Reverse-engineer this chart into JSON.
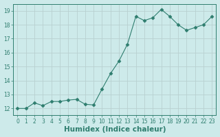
{
  "xlabel": "Humidex (Indice chaleur)",
  "x": [
    0,
    1,
    2,
    3,
    4,
    5,
    6,
    7,
    8,
    9,
    10,
    11,
    12,
    13,
    14,
    15,
    16,
    17,
    18,
    19,
    20,
    21,
    22,
    23
  ],
  "y": [
    12.0,
    12.0,
    12.4,
    12.2,
    12.5,
    12.5,
    12.6,
    12.65,
    12.3,
    12.25,
    13.4,
    14.5,
    15.4,
    16.6,
    18.6,
    18.3,
    18.5,
    19.1,
    18.6,
    18.0,
    17.6,
    17.8,
    18.0,
    18.6
  ],
  "line_color": "#2e7d6e",
  "marker": "D",
  "marker_size": 2.5,
  "bg_color": "#cdeaea",
  "grid_color": "#b8d0d0",
  "ylim": [
    11.5,
    19.5
  ],
  "xlim": [
    -0.5,
    23.5
  ],
  "yticks": [
    12,
    13,
    14,
    15,
    16,
    17,
    18,
    19
  ],
  "xticks": [
    0,
    1,
    2,
    3,
    4,
    5,
    6,
    7,
    8,
    9,
    10,
    11,
    12,
    13,
    14,
    15,
    16,
    17,
    18,
    19,
    20,
    21,
    22,
    23
  ],
  "tick_label_fontsize": 5.5,
  "xlabel_fontsize": 7.5
}
